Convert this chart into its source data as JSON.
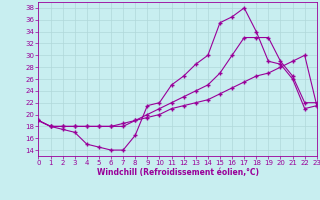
{
  "xlabel": "Windchill (Refroidissement éolien,°C)",
  "xlim": [
    0,
    23
  ],
  "ylim": [
    13,
    39
  ],
  "xticks": [
    0,
    1,
    2,
    3,
    4,
    5,
    6,
    7,
    8,
    9,
    10,
    11,
    12,
    13,
    14,
    15,
    16,
    17,
    18,
    19,
    20,
    21,
    22,
    23
  ],
  "yticks": [
    14,
    16,
    18,
    20,
    22,
    24,
    26,
    28,
    30,
    32,
    34,
    36,
    38
  ],
  "bg_color": "#c8eef0",
  "grid_color": "#b0d8da",
  "line_color": "#990099",
  "curve1_x": [
    0,
    1,
    2,
    3,
    4,
    5,
    6,
    7,
    8,
    9,
    10,
    11,
    12,
    13,
    14,
    15,
    16,
    17,
    18,
    19,
    20,
    21,
    22,
    23
  ],
  "curve1_y": [
    19,
    18,
    17.5,
    17,
    15,
    14.5,
    14,
    14,
    16.5,
    21.5,
    22,
    25,
    26.5,
    28.5,
    30,
    35.5,
    36.5,
    38,
    34,
    29,
    28.5,
    26,
    21,
    21.5
  ],
  "curve2_x": [
    0,
    1,
    2,
    3,
    4,
    5,
    6,
    7,
    8,
    9,
    10,
    11,
    12,
    13,
    14,
    15,
    16,
    17,
    18,
    19,
    20,
    21,
    22,
    23
  ],
  "curve2_y": [
    19,
    18,
    18,
    18,
    18,
    18,
    18,
    18.5,
    19,
    19.5,
    20,
    21,
    21.5,
    22,
    22.5,
    23.5,
    24.5,
    25.5,
    26.5,
    27,
    28,
    29,
    30,
    21.5
  ],
  "curve3_x": [
    0,
    1,
    2,
    3,
    4,
    5,
    6,
    7,
    8,
    9,
    10,
    11,
    12,
    13,
    14,
    15,
    16,
    17,
    18,
    19,
    20,
    21,
    22,
    23
  ],
  "curve3_y": [
    19,
    18,
    18,
    18,
    18,
    18,
    18,
    18,
    19,
    20,
    21,
    22,
    23,
    24,
    25,
    27,
    30,
    33,
    33,
    33,
    29,
    26.5,
    22,
    22
  ],
  "tick_fontsize": 5,
  "label_fontsize": 5.5,
  "marker_size": 2.5,
  "line_width": 0.8
}
